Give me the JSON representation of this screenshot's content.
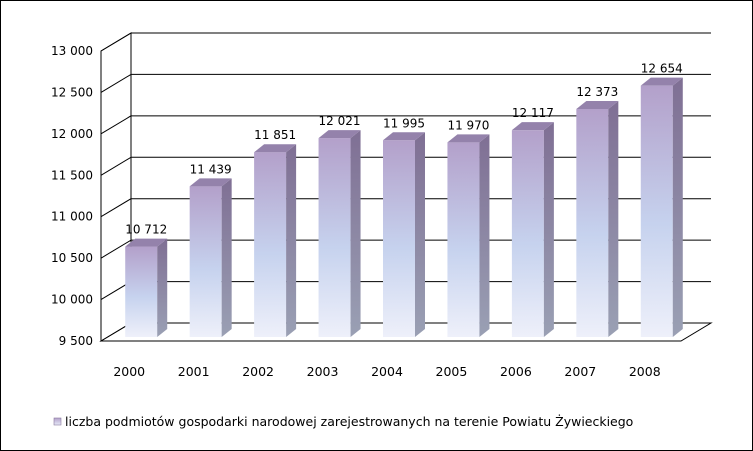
{
  "chart_data": {
    "type": "bar",
    "title": "",
    "xlabel": "",
    "ylabel": "",
    "categories": [
      "2000",
      "2001",
      "2002",
      "2003",
      "2004",
      "2005",
      "2006",
      "2007",
      "2008"
    ],
    "series": [
      {
        "name": "liczba podmiotów gospodarki narodowej zarejestrowanych na terenie Powiatu Żywieckiego",
        "values": [
          10712,
          11439,
          11851,
          12021,
          11995,
          11970,
          12117,
          12373,
          12654
        ],
        "labels": [
          "10 712",
          "11 439",
          "11 851",
          "12 021",
          "11 995",
          "11 970",
          "12 117",
          "12 373",
          "12 654"
        ]
      }
    ],
    "ylim": [
      9500,
      13000
    ],
    "yticks": [
      9500,
      10000,
      10500,
      11000,
      11500,
      12000,
      12500,
      13000
    ],
    "ytick_labels": [
      "9 500",
      "10 000",
      "10 500",
      "11 000",
      "11 500",
      "12 000",
      "12 500",
      "13 000"
    ],
    "grid": true,
    "legend_position": "bottom",
    "three_d": true,
    "colors": {
      "bar_top": "#b6a2cc",
      "bar_mid": "#c4d0ec",
      "bar_bottom": "#eef0fa",
      "bar_side": "#8a7a9e",
      "bar_cap": "#9a88b0"
    }
  }
}
